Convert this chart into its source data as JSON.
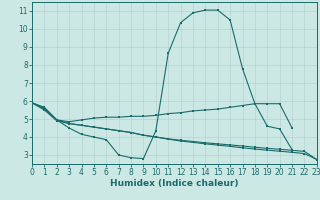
{
  "xlabel": "Humidex (Indice chaleur)",
  "xlim": [
    0,
    23
  ],
  "ylim": [
    2.5,
    11.5
  ],
  "xticks": [
    0,
    1,
    2,
    3,
    4,
    5,
    6,
    7,
    8,
    9,
    10,
    11,
    12,
    13,
    14,
    15,
    16,
    17,
    18,
    19,
    20,
    21,
    22,
    23
  ],
  "yticks": [
    3,
    4,
    5,
    6,
    7,
    8,
    9,
    10,
    11
  ],
  "bg_color": "#cce8e4",
  "line_color": "#1a6b6b",
  "lines": [
    {
      "x": [
        0,
        1,
        2,
        3,
        4,
        5,
        6,
        7,
        8,
        9,
        10,
        11,
        12,
        13,
        14,
        15,
        16,
        17,
        18,
        19,
        20,
        21
      ],
      "y": [
        5.9,
        5.65,
        4.95,
        4.5,
        4.15,
        4.0,
        3.85,
        3.0,
        2.85,
        2.8,
        4.35,
        8.65,
        10.35,
        10.9,
        11.05,
        11.05,
        10.5,
        7.8,
        5.85,
        4.6,
        4.45,
        3.3
      ]
    },
    {
      "x": [
        0,
        1,
        2,
        3,
        4,
        5,
        6,
        7,
        8,
        9,
        10,
        11,
        12,
        13,
        14,
        15,
        16,
        17,
        18,
        19,
        20,
        21
      ],
      "y": [
        5.9,
        5.6,
        4.95,
        4.85,
        4.95,
        5.05,
        5.1,
        5.1,
        5.15,
        5.15,
        5.2,
        5.3,
        5.35,
        5.45,
        5.5,
        5.55,
        5.65,
        5.75,
        5.85,
        5.85,
        5.85,
        4.5
      ]
    },
    {
      "x": [
        0,
        1,
        2,
        3,
        4,
        5,
        6,
        7,
        8,
        9,
        10,
        11,
        12,
        13,
        14,
        15,
        16,
        17,
        18,
        19,
        20,
        21,
        22,
        23
      ],
      "y": [
        5.9,
        5.55,
        4.95,
        4.75,
        4.65,
        4.55,
        4.45,
        4.35,
        4.25,
        4.1,
        4.0,
        3.9,
        3.82,
        3.75,
        3.68,
        3.62,
        3.56,
        3.5,
        3.43,
        3.37,
        3.32,
        3.26,
        3.2,
        2.75
      ]
    },
    {
      "x": [
        0,
        1,
        2,
        3,
        4,
        5,
        6,
        7,
        8,
        9,
        10,
        11,
        12,
        13,
        14,
        15,
        16,
        17,
        18,
        19,
        20,
        21,
        22,
        23
      ],
      "y": [
        5.9,
        5.5,
        4.9,
        4.75,
        4.65,
        4.55,
        4.45,
        4.35,
        4.25,
        4.1,
        4.0,
        3.88,
        3.78,
        3.7,
        3.62,
        3.55,
        3.48,
        3.4,
        3.33,
        3.27,
        3.21,
        3.15,
        3.08,
        2.75
      ]
    }
  ]
}
